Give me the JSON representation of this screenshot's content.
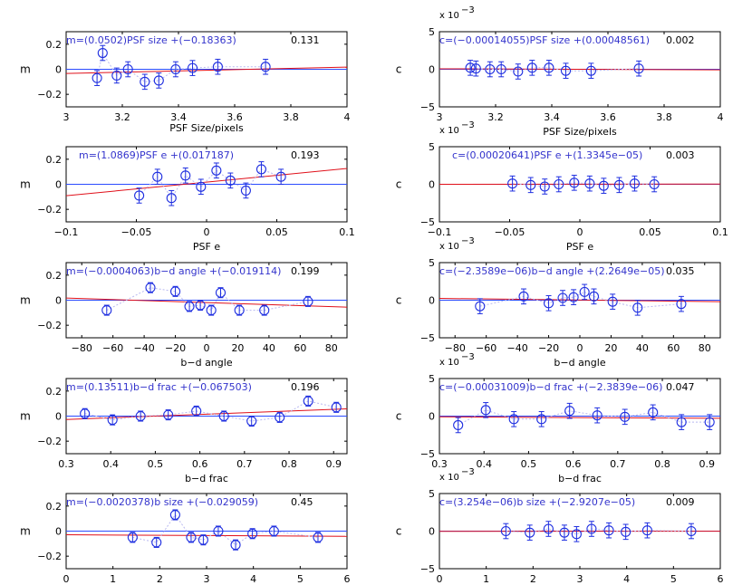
{
  "chart_data": [
    {
      "type": "scatter",
      "panel": "m-psf-size",
      "xlabel": "PSF Size/pixels",
      "xlabel_small": true,
      "ylabel": "m",
      "xlim": [
        3,
        4
      ],
      "ylim": [
        -0.3,
        0.3
      ],
      "xticks": [
        3,
        3.2,
        3.4,
        3.6,
        3.8,
        4
      ],
      "xtick_labels": [
        "3",
        "3.2",
        "3.4",
        "3.6",
        "3.8",
        "4"
      ],
      "yticks": [
        -0.2,
        0,
        0.2
      ],
      "ytick_labels": [
        "−0.2",
        "0",
        "0.2"
      ],
      "exponent": "",
      "fit_text": "m=(0.0502)PSF size +(−0.18363)",
      "r_text": "0.131",
      "fit": {
        "slope": 0.0502,
        "intercept": -0.18363
      },
      "ref_y": 0,
      "x": [
        3.11,
        3.13,
        3.18,
        3.22,
        3.28,
        3.33,
        3.39,
        3.45,
        3.54,
        3.71
      ],
      "y": [
        -0.07,
        0.13,
        -0.05,
        0.0,
        -0.1,
        -0.09,
        0.0,
        0.01,
        0.02,
        0.02
      ],
      "err": [
        0.06,
        0.06,
        0.06,
        0.06,
        0.06,
        0.06,
        0.06,
        0.06,
        0.06,
        0.06
      ]
    },
    {
      "type": "scatter",
      "panel": "c-psf-size",
      "xlabel": "PSF Size/pixels",
      "xlabel_small": false,
      "ylabel": "c",
      "xlim": [
        3,
        4
      ],
      "ylim": [
        -5,
        5
      ],
      "xticks": [
        3,
        3.2,
        3.4,
        3.6,
        3.8,
        4
      ],
      "xtick_labels": [
        "3",
        "3.2",
        "3.4",
        "3.6",
        "3.8",
        "4"
      ],
      "yticks": [
        -5,
        0,
        5
      ],
      "ytick_labels": [
        "−5",
        "0",
        "5"
      ],
      "exponent": "x 10",
      "exponent_power": "−3",
      "fit_text": "c=(−0.00014055)PSF size +(0.00048561)",
      "r_text": "0.002",
      "fit": {
        "slope": -0.14055,
        "intercept": 0.48561
      },
      "ref_y": 0,
      "x": [
        3.11,
        3.13,
        3.18,
        3.22,
        3.28,
        3.33,
        3.39,
        3.45,
        3.54,
        3.71
      ],
      "y": [
        0.2,
        0.1,
        0.0,
        0.0,
        -0.3,
        0.2,
        0.2,
        -0.2,
        -0.2,
        0.1
      ],
      "err": [
        1.0,
        1.0,
        1.0,
        1.0,
        1.0,
        1.0,
        1.0,
        1.0,
        1.0,
        1.0
      ]
    },
    {
      "type": "scatter",
      "panel": "m-psf-e",
      "xlabel": "PSF e",
      "xlabel_small": false,
      "ylabel": "m",
      "xlim": [
        -0.1,
        0.1
      ],
      "ylim": [
        -0.3,
        0.3
      ],
      "xticks": [
        -0.1,
        -0.05,
        0,
        0.05,
        0.1
      ],
      "xtick_labels": [
        "−0.1",
        "−0.05",
        "0",
        "0.05",
        "0.1"
      ],
      "yticks": [
        -0.2,
        0,
        0.2
      ],
      "ytick_labels": [
        "−0.2",
        "0",
        "0.2"
      ],
      "exponent": "",
      "fit_text": "m=(1.0869)PSF e +(0.017187)",
      "r_text": "0.193",
      "fit": {
        "slope": 1.0869,
        "intercept": 0.017187
      },
      "ref_y": 0,
      "x": [
        -0.048,
        -0.035,
        -0.025,
        -0.015,
        -0.004,
        0.007,
        0.017,
        0.028,
        0.039,
        0.053
      ],
      "y": [
        -0.09,
        0.06,
        -0.11,
        0.07,
        -0.02,
        0.11,
        0.03,
        -0.05,
        0.12,
        0.06
      ],
      "err": [
        0.06,
        0.06,
        0.06,
        0.06,
        0.06,
        0.06,
        0.06,
        0.06,
        0.06,
        0.06
      ]
    },
    {
      "type": "scatter",
      "panel": "c-psf-e",
      "xlabel": "PSF e",
      "xlabel_small": false,
      "ylabel": "c",
      "xlim": [
        -0.1,
        0.1
      ],
      "ylim": [
        -5,
        5
      ],
      "xticks": [
        -0.1,
        -0.05,
        0,
        0.05,
        0.1
      ],
      "xtick_labels": [
        "−0.1",
        "−0.05",
        "0",
        "0.05",
        "0.1"
      ],
      "yticks": [
        -5,
        0,
        5
      ],
      "ytick_labels": [
        "−5",
        "0",
        "5"
      ],
      "exponent": "x 10",
      "exponent_power": "−3",
      "fit_text": "c=(0.00020641)PSF e +(1.3345e−05)",
      "r_text": "0.003",
      "fit": {
        "slope": 0.20641,
        "intercept": 0.013345
      },
      "ref_y": 0,
      "x": [
        -0.048,
        -0.035,
        -0.025,
        -0.015,
        -0.004,
        0.007,
        0.017,
        0.028,
        0.039,
        0.053
      ],
      "y": [
        0.1,
        -0.1,
        -0.3,
        0.0,
        0.2,
        0.1,
        -0.2,
        -0.1,
        0.1,
        0.0
      ],
      "err": [
        1.0,
        1.0,
        1.0,
        1.0,
        1.0,
        1.0,
        1.0,
        1.0,
        1.0,
        1.0
      ]
    },
    {
      "type": "scatter",
      "panel": "m-bd-angle",
      "xlabel": "b−d angle",
      "xlabel_small": false,
      "ylabel": "m",
      "xlim": [
        -90,
        90
      ],
      "ylim": [
        -0.3,
        0.3
      ],
      "xticks": [
        -80,
        -60,
        -40,
        -20,
        0,
        20,
        40,
        60,
        80
      ],
      "xtick_labels": [
        "−80",
        "−60",
        "−40",
        "−20",
        "0",
        "20",
        "40",
        "60",
        "80"
      ],
      "yticks": [
        -0.2,
        0,
        0.2
      ],
      "ytick_labels": [
        "−0.2",
        "0",
        "0.2"
      ],
      "exponent": "",
      "fit_text": "m=(−0.0004063)b−d angle +(−0.019114)",
      "r_text": "0.199",
      "fit": {
        "slope": -0.0004063,
        "intercept": -0.019114
      },
      "ref_y": 0,
      "x": [
        -64,
        -36,
        -20,
        -11,
        -4,
        3,
        9,
        21,
        37,
        65
      ],
      "y": [
        -0.08,
        0.1,
        0.07,
        -0.05,
        -0.04,
        -0.08,
        0.06,
        -0.08,
        -0.08,
        -0.01
      ],
      "err": [
        0.04,
        0.04,
        0.04,
        0.04,
        0.04,
        0.04,
        0.04,
        0.04,
        0.04,
        0.04
      ]
    },
    {
      "type": "scatter",
      "panel": "c-bd-angle",
      "xlabel": "b−d angle",
      "xlabel_small": false,
      "ylabel": "c",
      "xlim": [
        -90,
        90
      ],
      "ylim": [
        -5,
        5
      ],
      "xticks": [
        -80,
        -60,
        -40,
        -20,
        0,
        20,
        40,
        60,
        80
      ],
      "xtick_labels": [
        "−80",
        "−60",
        "−40",
        "−20",
        "0",
        "20",
        "40",
        "60",
        "80"
      ],
      "yticks": [
        -5,
        0,
        5
      ],
      "ytick_labels": [
        "−5",
        "0",
        "5"
      ],
      "exponent": "x 10",
      "exponent_power": "−3",
      "fit_text": "c=(−2.3589e−06)b−d angle +(2.2649e−05)",
      "r_text": "0.035",
      "fit": {
        "slope": -0.0023589,
        "intercept": 0.022649
      },
      "ref_y": 0,
      "x": [
        -64,
        -36,
        -20,
        -11,
        -4,
        3,
        9,
        21,
        37,
        65
      ],
      "y": [
        -0.8,
        0.5,
        -0.4,
        0.3,
        0.4,
        1.1,
        0.5,
        -0.2,
        -1.0,
        -0.5
      ],
      "err": [
        1.0,
        1.0,
        1.0,
        1.0,
        1.0,
        1.0,
        1.0,
        1.0,
        1.0,
        1.0
      ]
    },
    {
      "type": "scatter",
      "panel": "m-bd-frac",
      "xlabel": "b−d frac",
      "xlabel_small": false,
      "ylabel": "m",
      "xlim": [
        0.3,
        0.93
      ],
      "ylim": [
        -0.3,
        0.3
      ],
      "xticks": [
        0.3,
        0.4,
        0.5,
        0.6,
        0.7,
        0.8,
        0.9
      ],
      "xtick_labels": [
        "0.3",
        "0.4",
        "0.5",
        "0.6",
        "0.7",
        "0.8",
        "0.9"
      ],
      "yticks": [
        -0.2,
        0,
        0.2
      ],
      "ytick_labels": [
        "−0.2",
        "0",
        "0.2"
      ],
      "exponent": "",
      "fit_text": "m=(0.13511)b−d frac +(−0.067503)",
      "r_text": "0.196",
      "fit": {
        "slope": 0.13511,
        "intercept": -0.067503
      },
      "ref_y": 0,
      "x": [
        0.342,
        0.404,
        0.467,
        0.529,
        0.592,
        0.654,
        0.716,
        0.779,
        0.843,
        0.906
      ],
      "y": [
        0.02,
        -0.03,
        0.0,
        0.01,
        0.04,
        0.0,
        -0.04,
        -0.01,
        0.12,
        0.07
      ],
      "err": [
        0.04,
        0.04,
        0.04,
        0.04,
        0.04,
        0.04,
        0.04,
        0.04,
        0.04,
        0.04
      ]
    },
    {
      "type": "scatter",
      "panel": "c-bd-frac",
      "xlabel": "b−d frac",
      "xlabel_small": false,
      "ylabel": "c",
      "xlim": [
        0.3,
        0.93
      ],
      "ylim": [
        -5,
        5
      ],
      "xticks": [
        0.3,
        0.4,
        0.5,
        0.6,
        0.7,
        0.8,
        0.9
      ],
      "xtick_labels": [
        "0.3",
        "0.4",
        "0.5",
        "0.6",
        "0.7",
        "0.8",
        "0.9"
      ],
      "yticks": [
        -5,
        0,
        5
      ],
      "ytick_labels": [
        "−5",
        "0",
        "5"
      ],
      "exponent": "x 10",
      "exponent_power": "−3",
      "fit_text": "c=(−0.00031009)b−d frac +(−2.3839e−06)",
      "r_text": "0.047",
      "fit": {
        "slope": -0.31009,
        "intercept": -0.0023839
      },
      "ref_y": 0,
      "x": [
        0.342,
        0.404,
        0.467,
        0.529,
        0.592,
        0.654,
        0.716,
        0.779,
        0.843,
        0.906
      ],
      "y": [
        -1.2,
        0.8,
        -0.4,
        -0.4,
        0.7,
        0.1,
        -0.1,
        0.5,
        -0.8,
        -0.8
      ],
      "err": [
        1.0,
        1.0,
        1.0,
        1.0,
        1.0,
        1.0,
        1.0,
        1.0,
        1.0,
        1.0
      ]
    },
    {
      "type": "scatter",
      "panel": "m-b-size",
      "xlabel": "b size",
      "xlabel_small": false,
      "ylabel": "m",
      "xlim": [
        0,
        6
      ],
      "ylim": [
        -0.3,
        0.3
      ],
      "xticks": [
        0,
        1,
        2,
        3,
        4,
        5,
        6
      ],
      "xtick_labels": [
        "0",
        "1",
        "2",
        "3",
        "4",
        "5",
        "6"
      ],
      "yticks": [
        -0.2,
        0,
        0.2
      ],
      "ytick_labels": [
        "−0.2",
        "0",
        "0.2"
      ],
      "exponent": "",
      "fit_text": "m=(−0.0020378)b size +(−0.029059)",
      "r_text": "0.45",
      "fit": {
        "slope": -0.0020378,
        "intercept": -0.029059
      },
      "ref_y": 0,
      "x": [
        1.42,
        1.93,
        2.33,
        2.67,
        2.93,
        3.25,
        3.62,
        3.98,
        4.44,
        5.38
      ],
      "y": [
        -0.05,
        -0.09,
        0.13,
        -0.05,
        -0.07,
        0.0,
        -0.11,
        -0.02,
        0.0,
        -0.05
      ],
      "err": [
        0.04,
        0.04,
        0.04,
        0.04,
        0.04,
        0.04,
        0.04,
        0.04,
        0.04,
        0.04
      ]
    },
    {
      "type": "scatter",
      "panel": "c-b-size",
      "xlabel": "b size",
      "xlabel_small": false,
      "ylabel": "c",
      "xlim": [
        0,
        6
      ],
      "ylim": [
        -5,
        5
      ],
      "xticks": [
        0,
        1,
        2,
        3,
        4,
        5,
        6
      ],
      "xtick_labels": [
        "0",
        "1",
        "2",
        "3",
        "4",
        "5",
        "6"
      ],
      "yticks": [
        -5,
        0,
        5
      ],
      "ytick_labels": [
        "−5",
        "0",
        "5"
      ],
      "exponent": "x 10",
      "exponent_power": "−3",
      "fit_text": "c=(3.254e−06)b size +(−2.9207e−05)",
      "r_text": "0.009",
      "fit": {
        "slope": 0.003254,
        "intercept": -0.029207
      },
      "ref_y": 0,
      "x": [
        1.42,
        1.93,
        2.33,
        2.67,
        2.93,
        3.25,
        3.62,
        3.98,
        4.44,
        5.38
      ],
      "y": [
        0.0,
        -0.2,
        0.3,
        -0.2,
        -0.4,
        0.3,
        0.1,
        -0.1,
        0.1,
        0.0
      ],
      "err": [
        1.0,
        1.0,
        1.0,
        1.0,
        1.0,
        1.0,
        1.0,
        1.0,
        1.0,
        1.0
      ]
    }
  ]
}
